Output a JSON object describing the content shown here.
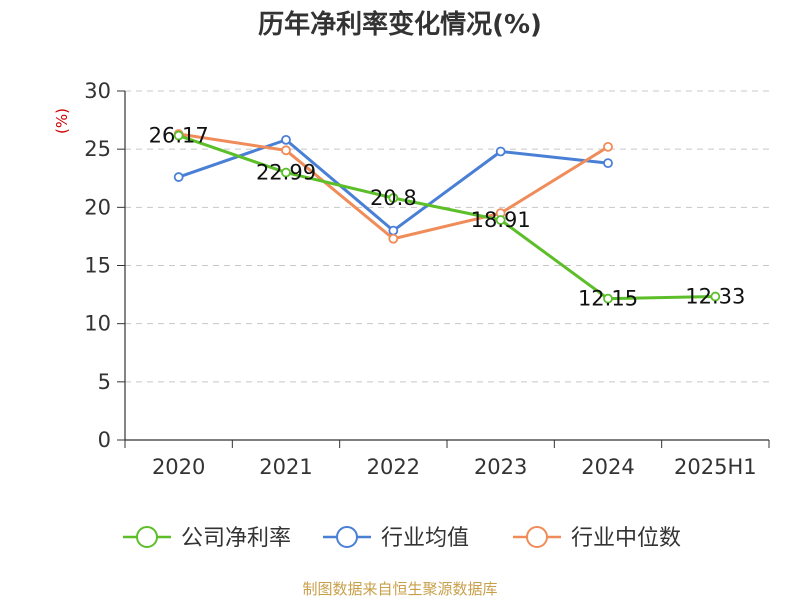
{
  "chart_data": {
    "type": "line",
    "title": "历年净利率变化情况(%)",
    "ylabel": "(%)",
    "xlabel": "",
    "categories": [
      "2020",
      "2021",
      "2022",
      "2023",
      "2024",
      "2025H1"
    ],
    "ylim": [
      0,
      30
    ],
    "yticks": [
      0,
      5,
      10,
      15,
      20,
      25,
      30
    ],
    "grid": true,
    "legend_position": "bottom",
    "series": [
      {
        "name": "公司净利率",
        "color": "#5cbf2a",
        "values": [
          26.17,
          22.99,
          20.8,
          18.91,
          12.15,
          12.33
        ],
        "labels": [
          "26.17",
          "22.99",
          "20.8",
          "18.91",
          "12.15",
          "12.33"
        ]
      },
      {
        "name": "行业均值",
        "color": "#4a7fd6",
        "values": [
          22.6,
          25.8,
          18.0,
          24.8,
          23.8,
          null
        ]
      },
      {
        "name": "行业中位数",
        "color": "#f08c5a",
        "values": [
          26.3,
          24.9,
          17.3,
          19.5,
          25.2,
          null
        ]
      }
    ]
  },
  "source": "制图数据来自恒生聚源数据库"
}
